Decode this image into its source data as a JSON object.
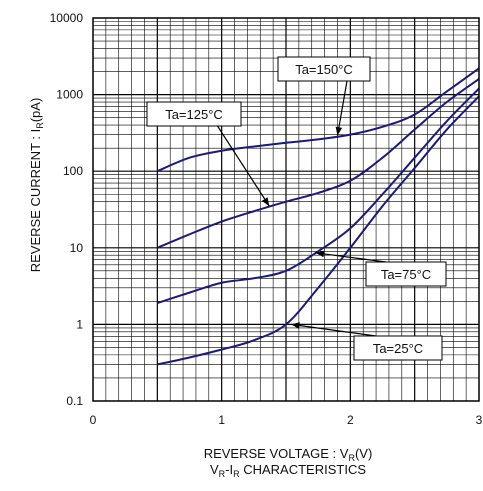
{
  "chart_data": {
    "type": "line",
    "xlabel": "REVERSE VOLTAGE : V",
    "xlabel_sub": "R",
    "xlabel_unit": "(V)",
    "ylabel": "REVERSE CURRENT : I",
    "ylabel_sub": "R",
    "ylabel_unit": "(pA)",
    "subtitle_parts": [
      "V",
      "R",
      "-I",
      "R",
      " CHARACTERISTICS"
    ],
    "xlim": [
      0,
      3
    ],
    "ylim": [
      0.1,
      10000
    ],
    "y_scale": "log",
    "x_ticks": [
      {
        "value": 0,
        "label": "0"
      },
      {
        "value": 1,
        "label": "1"
      },
      {
        "value": 2,
        "label": "2"
      },
      {
        "value": 3,
        "label": "3"
      }
    ],
    "y_ticks": [
      {
        "value": 0.1,
        "label": "0.1"
      },
      {
        "value": 1,
        "label": "1"
      },
      {
        "value": 10,
        "label": "10"
      },
      {
        "value": 100,
        "label": "100"
      },
      {
        "value": 1000,
        "label": "1000"
      },
      {
        "value": 10000,
        "label": "10000"
      }
    ],
    "grid": true,
    "series": [
      {
        "name": "Ta=150°C",
        "x": [
          0.5,
          0.75,
          1.0,
          1.25,
          1.5,
          1.75,
          2.0,
          2.25,
          2.5,
          2.75,
          3.0
        ],
        "y": [
          100,
          150,
          185,
          210,
          235,
          260,
          300,
          380,
          550,
          1100,
          2200
        ],
        "label_anchor": [
          1.9,
          292
        ],
        "label_value": "Ta=150°C"
      },
      {
        "name": "Ta=125°C",
        "x": [
          0.5,
          0.75,
          1.0,
          1.25,
          1.5,
          1.75,
          2.0,
          2.25,
          2.5,
          2.75,
          3.0
        ],
        "y": [
          10,
          15,
          22,
          30,
          40,
          52,
          75,
          150,
          350,
          800,
          1600
        ],
        "label_anchor": [
          1.37,
          35
        ],
        "label_value": "Ta=125°C"
      },
      {
        "name": "Ta=75°C",
        "x": [
          0.5,
          0.75,
          1.0,
          1.25,
          1.5,
          1.75,
          2.0,
          2.25,
          2.5,
          2.75,
          3.0
        ],
        "y": [
          1.9,
          2.6,
          3.5,
          4.0,
          5.0,
          9.0,
          18,
          50,
          150,
          450,
          1200
        ],
        "label_anchor": [
          1.73,
          8.6
        ],
        "label_value": "Ta=75°C"
      },
      {
        "name": "Ta=25°C",
        "x": [
          0.5,
          0.75,
          1.0,
          1.25,
          1.5,
          1.75,
          2.0,
          2.25,
          2.5,
          2.75,
          3.0
        ],
        "y": [
          0.3,
          0.37,
          0.47,
          0.62,
          1.0,
          3.0,
          10,
          35,
          110,
          350,
          950
        ],
        "label_anchor": [
          1.54,
          1.0
        ],
        "label_value": "Ta=25°C"
      }
    ],
    "line_color": "#1a1a7a"
  }
}
